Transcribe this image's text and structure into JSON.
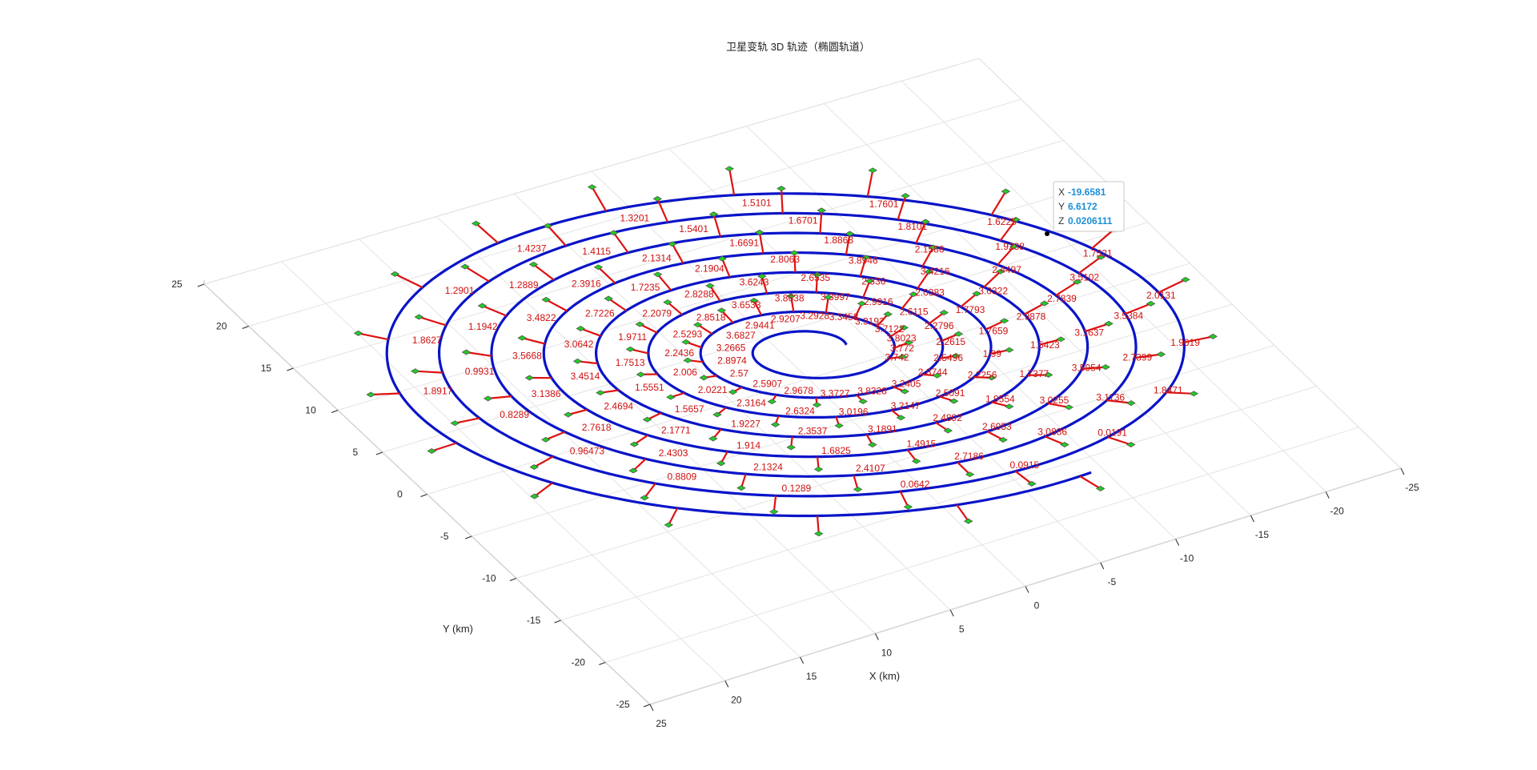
{
  "chart_data": {
    "type": "line",
    "title": "卫星变轨 3D 轨迹（椭圆轨道）",
    "xlabel": "X (km)",
    "ylabel": "Y (km)",
    "xlim": [
      -25,
      25
    ],
    "ylim": [
      -25,
      25
    ],
    "x_ticks": [
      "25",
      "20",
      "15",
      "10",
      "5",
      "0",
      "-5",
      "-10",
      "-15",
      "-20",
      "-25"
    ],
    "y_ticks": [
      "25",
      "20",
      "15",
      "10",
      "5",
      "0",
      "-5",
      "-10",
      "-15",
      "-20",
      "-25"
    ],
    "grid": true,
    "series": [
      {
        "style": "spiral trajectory",
        "color": "#0a14c8",
        "x_start": 2,
        "x_end": -22,
        "y_start": 1.5,
        "y_end": -7,
        "turns": 8
      }
    ],
    "markers": {
      "color": "#22cc22",
      "edge": "#555555"
    },
    "vectors": {
      "color": "#dd1111"
    },
    "value_labels": [
      "3.742",
      "3.772",
      "3.8023",
      "3.7122",
      "3.3192",
      "3.3458",
      "3.2928",
      "2.9207",
      "2.9441",
      "3.6827",
      "3.2665",
      "2.8974",
      "2.57",
      "2.5907",
      "2.9678",
      "3.3727",
      "3.8328",
      "3.2405",
      "2.8744",
      "2.5496",
      "2.2615",
      "2.2796",
      "2.6115",
      "2.9916",
      "3.3997",
      "3.8638",
      "3.6533",
      "2.8518",
      "2.5293",
      "2.2436",
      "2.006",
      "2.0221",
      "2.3164",
      "2.6324",
      "3.0196",
      "3.2147",
      "2.5091",
      "2.2256",
      "1.99",
      "1.7659",
      "1.7793",
      "2.0383",
      "2.336",
      "2.6535",
      "3.6243",
      "2.8288",
      "2.2079",
      "1.9711",
      "1.7513",
      "1.5551",
      "1.5657",
      "1.9227",
      "2.3537",
      "3.1891",
      "2.4892",
      "1.9554",
      "1.7377",
      "1.5423",
      "2.9878",
      "3.0322",
      "3.4216",
      "3.8946",
      "2.8063",
      "2.1904",
      "1.7235",
      "2.7226",
      "3.0642",
      "3.4514",
      "2.4694",
      "2.1771",
      "1.914",
      "1.6825",
      "1.4915",
      "2.6953",
      "3.0255",
      "3.5954",
      "3.1637",
      "2.7839",
      "2.4497",
      "2.1586",
      "1.8868",
      "1.6691",
      "2.1314",
      "2.3916",
      "3.4822",
      "3.5668",
      "3.1386",
      "2.7618",
      "2.4303",
      "2.1324",
      "2.4107",
      "2.7186",
      "3.0886",
      "3.1136",
      "2.7399",
      "3.5384",
      "3.5102",
      "1.9238",
      "1.8101",
      "1.6701",
      "1.5401",
      "1.4115",
      "1.2889",
      "1.1942",
      "0.9931",
      "0.8289",
      "0.96473",
      "0.8809",
      "0.1289",
      "0.0642",
      "0.0915",
      "0.0191",
      "1.8471",
      "1.9619",
      "2.0131",
      "1.7521",
      "1.6225",
      "1.7601",
      "1.5101",
      "1.3201",
      "1.4237",
      "1.2901",
      "1.8627",
      "1.8917"
    ],
    "datatip": {
      "X": "-19.6581",
      "Y": "6.6172",
      "Z": "0.0206111"
    }
  }
}
